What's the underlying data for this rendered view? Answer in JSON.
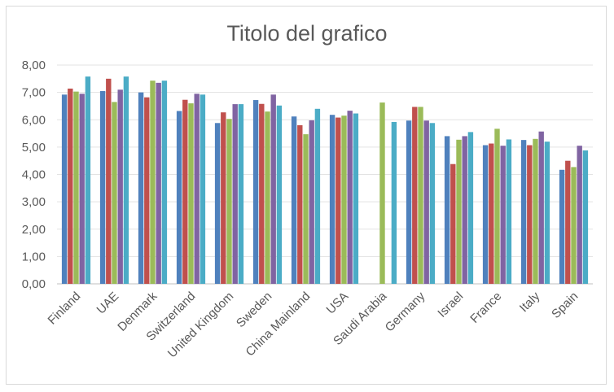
{
  "chart_data": {
    "type": "bar",
    "title": "Titolo del grafico",
    "xlabel": "",
    "ylabel": "",
    "ylim": [
      0,
      8
    ],
    "y_ticks": [
      "0,00",
      "1,00",
      "2,00",
      "3,00",
      "4,00",
      "5,00",
      "6,00",
      "7,00",
      "8,00"
    ],
    "grid": true,
    "legend": "none",
    "categories": [
      "Finland",
      "UAE",
      "Denmark",
      "Switzerland",
      "United Kingdom",
      "Sweden",
      "China Mainland",
      "USA",
      "Saudi Arabia",
      "Germany",
      "Israel",
      "France",
      "Italy",
      "Spain"
    ],
    "series": [
      {
        "color": "#4f81bd",
        "values": [
          6.92,
          7.05,
          7.0,
          6.32,
          5.88,
          6.72,
          6.12,
          6.18,
          null,
          5.97,
          5.4,
          5.07,
          5.26,
          4.17
        ]
      },
      {
        "color": "#c0504d",
        "values": [
          7.14,
          7.5,
          6.82,
          6.73,
          6.27,
          6.58,
          5.8,
          6.08,
          null,
          6.47,
          4.38,
          5.13,
          5.07,
          4.5
        ]
      },
      {
        "color": "#9bbb59",
        "values": [
          7.03,
          6.65,
          7.43,
          6.6,
          6.03,
          6.3,
          5.47,
          6.15,
          6.63,
          6.47,
          5.27,
          5.67,
          5.3,
          4.27
        ]
      },
      {
        "color": "#8064a2",
        "values": [
          6.95,
          7.1,
          7.35,
          6.95,
          6.57,
          6.92,
          5.98,
          6.33,
          null,
          5.97,
          5.4,
          5.05,
          5.57,
          5.05
        ]
      },
      {
        "color": "#4bacc6",
        "values": [
          7.58,
          7.58,
          7.43,
          6.92,
          6.57,
          6.52,
          6.4,
          6.23,
          5.92,
          5.88,
          5.55,
          5.28,
          5.2,
          4.88
        ]
      }
    ]
  }
}
